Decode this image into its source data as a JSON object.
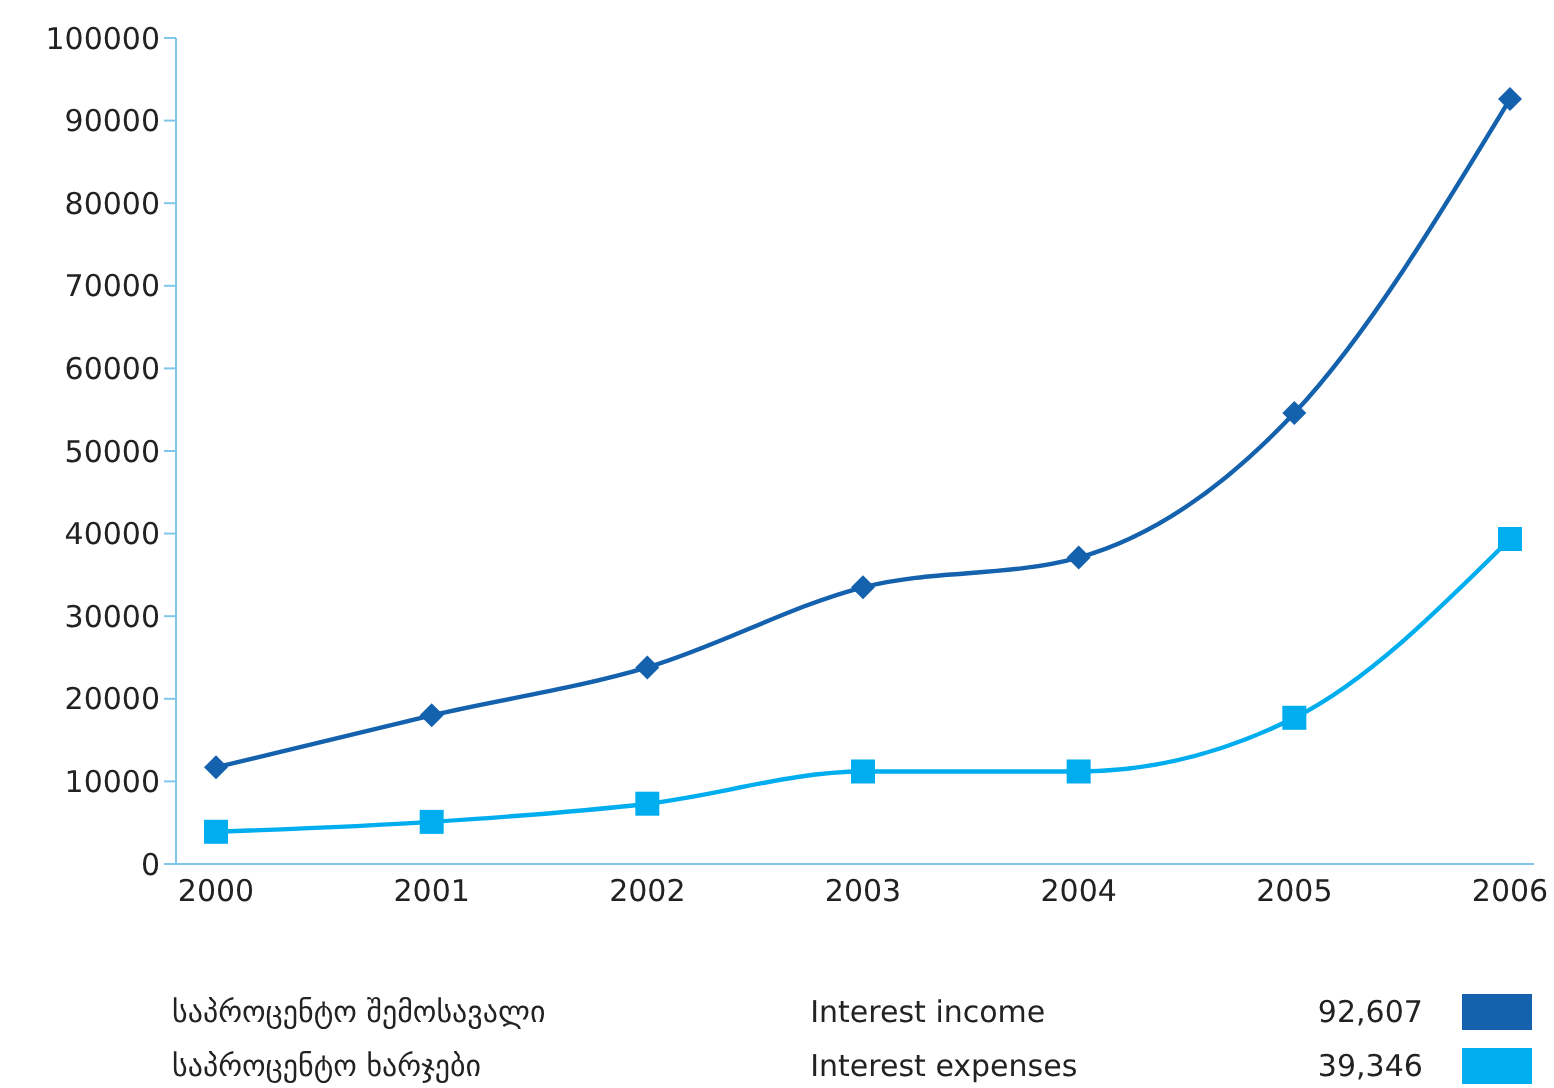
{
  "chart_data": {
    "type": "line",
    "categories": [
      "2000",
      "2001",
      "2002",
      "2003",
      "2004",
      "2005",
      "2006"
    ],
    "series": [
      {
        "color": "#1461ad",
        "marker": "diamond",
        "values": [
          11700,
          18000,
          23800,
          33500,
          37100,
          54600,
          92607
        ]
      },
      {
        "color": "#00adef",
        "marker": "square",
        "values": [
          3900,
          5100,
          7300,
          11200,
          11200,
          17700,
          39346
        ]
      }
    ],
    "annotations": [
      "საპროცენტო შემოსავალი",
      "საპროცენტო ხარჯები",
      "Interest income",
      "Interest expenses",
      "92,607",
      "39,346"
    ],
    "ylim": [
      0,
      100000
    ],
    "yticks": [
      0,
      10000,
      20000,
      30000,
      40000,
      50000,
      60000,
      70000,
      80000,
      90000,
      100000
    ]
  }
}
